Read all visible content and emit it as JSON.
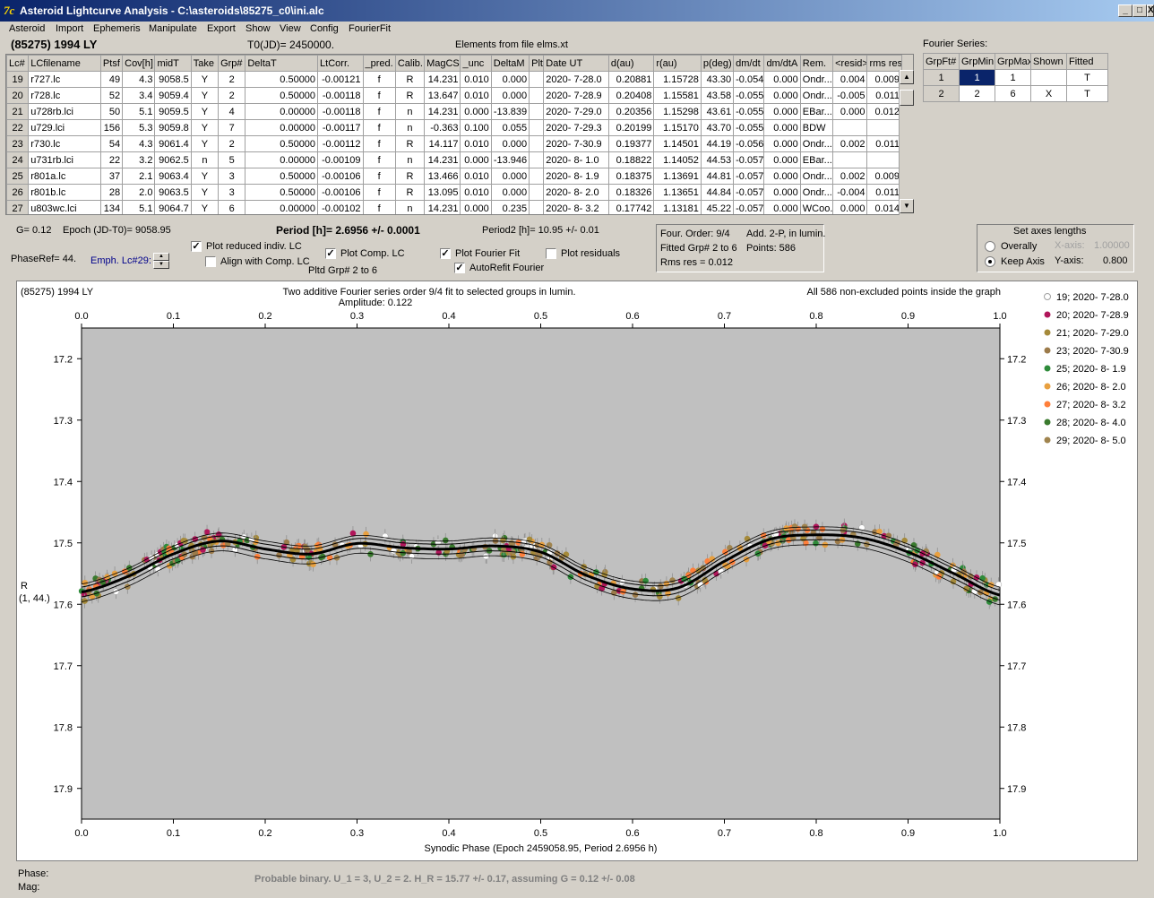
{
  "window": {
    "title": "Asteroid Lightcurve Analysis - C:\\asteroids\\85275_c0\\ini.alc",
    "icon": "app-logo-icon",
    "min": "_",
    "max": "□",
    "close": "X"
  },
  "menu": [
    "Asteroid",
    "Import",
    "Ephemeris",
    "Manipulate",
    "Export",
    "Show",
    "View",
    "Config",
    "FourierFit"
  ],
  "header": {
    "asteroid": "(85275) 1994 LY",
    "t0": "T0(JD)= 2450000.",
    "elements": "Elements from file elms.xt"
  },
  "table": {
    "columns": [
      "Lc#",
      "LCfilename",
      "Ptsf",
      "Cov[h]",
      "midT",
      "Take",
      "Grp#",
      "DeltaT",
      "LtCorr.",
      "_pred.",
      "Calib.",
      "MagCS",
      "_unc",
      "DeltaM",
      "Plt",
      "Date UT",
      "d(au)",
      "r(au)",
      "p(deg)",
      "dm/dt",
      "dm/dtA",
      "Rem.",
      "<resid>",
      "rms res"
    ],
    "rows": [
      [
        "19",
        "r727.lc",
        "49",
        "4.3",
        "9058.5",
        "Y",
        "2",
        "0.50000",
        "-0.00121",
        "f",
        "R",
        "14.231",
        "0.010",
        "0.000",
        "",
        "2020- 7-28.0",
        "0.20881",
        "1.15728",
        "43.30",
        "-0.054",
        "0.000",
        "Ondr...",
        "0.004",
        "0.009"
      ],
      [
        "20",
        "r728.lc",
        "52",
        "3.4",
        "9059.4",
        "Y",
        "2",
        "0.50000",
        "-0.00118",
        "f",
        "R",
        "13.647",
        "0.010",
        "0.000",
        "",
        "2020- 7-28.9",
        "0.20408",
        "1.15581",
        "43.58",
        "-0.055",
        "0.000",
        "Ondr...",
        "-0.005",
        "0.011"
      ],
      [
        "21",
        "u728rb.lci",
        "50",
        "5.1",
        "9059.5",
        "Y",
        "4",
        "0.00000",
        "-0.00118",
        "f",
        "n",
        "14.231",
        "0.000",
        "-13.839",
        "",
        "2020- 7-29.0",
        "0.20356",
        "1.15298",
        "43.61",
        "-0.055",
        "0.000",
        "EBar...",
        "0.000",
        "0.012"
      ],
      [
        "22",
        "u729.lci",
        "156",
        "5.3",
        "9059.8",
        "Y",
        "7",
        "0.00000",
        "-0.00117",
        "f",
        "n",
        "-0.363",
        "0.100",
        "0.055",
        "",
        "2020- 7-29.3",
        "0.20199",
        "1.15170",
        "43.70",
        "-0.055",
        "0.000",
        "BDW",
        "",
        ""
      ],
      [
        "23",
        "r730.lc",
        "54",
        "4.3",
        "9061.4",
        "Y",
        "2",
        "0.50000",
        "-0.00112",
        "f",
        "R",
        "14.117",
        "0.010",
        "0.000",
        "",
        "2020- 7-30.9",
        "0.19377",
        "1.14501",
        "44.19",
        "-0.056",
        "0.000",
        "Ondr...",
        "0.002",
        "0.011"
      ],
      [
        "24",
        "u731rb.lci",
        "22",
        "3.2",
        "9062.5",
        "n",
        "5",
        "0.00000",
        "-0.00109",
        "f",
        "n",
        "14.231",
        "0.000",
        "-13.946",
        "",
        "2020- 8- 1.0",
        "0.18822",
        "1.14052",
        "44.53",
        "-0.057",
        "0.000",
        "EBar...",
        "",
        ""
      ],
      [
        "25",
        "r801a.lc",
        "37",
        "2.1",
        "9063.4",
        "Y",
        "3",
        "0.50000",
        "-0.00106",
        "f",
        "R",
        "13.466",
        "0.010",
        "0.000",
        "",
        "2020- 8- 1.9",
        "0.18375",
        "1.13691",
        "44.81",
        "-0.057",
        "0.000",
        "Ondr...",
        "0.002",
        "0.009"
      ],
      [
        "26",
        "r801b.lc",
        "28",
        "2.0",
        "9063.5",
        "Y",
        "3",
        "0.50000",
        "-0.00106",
        "f",
        "R",
        "13.095",
        "0.010",
        "0.000",
        "",
        "2020- 8- 2.0",
        "0.18326",
        "1.13651",
        "44.84",
        "-0.057",
        "0.000",
        "Ondr...",
        "-0.004",
        "0.011"
      ],
      [
        "27",
        "u803wc.lci",
        "134",
        "5.1",
        "9064.7",
        "Y",
        "6",
        "0.00000",
        "-0.00102",
        "f",
        "n",
        "14.231",
        "0.000",
        "0.235",
        "",
        "2020- 8- 3.2",
        "0.17742",
        "1.13181",
        "45.22",
        "-0.057",
        "0.000",
        "WCoo...",
        "0.000",
        "0.014"
      ]
    ]
  },
  "fourier": {
    "label": "Fourier Series:",
    "columns": [
      "GrpFt#",
      "GrpMin",
      "GrpMax",
      "Shown",
      "Fitted"
    ],
    "rows": [
      [
        "1",
        "1",
        "1",
        "",
        "T"
      ],
      [
        "2",
        "2",
        "6",
        "X",
        "T"
      ]
    ]
  },
  "params": {
    "g": "G= 0.12",
    "epoch": "Epoch (JD-T0)= 9058.95",
    "period": "Period [h]= 2.6956 +/- 0.0001",
    "period2": "Period2 [h]= 10.95 +/- 0.01",
    "phaseref": "PhaseRef= 44.",
    "emph": "Emph. Lc#29:"
  },
  "checks": {
    "reduced": "Plot reduced indiv. LC",
    "align": "Align with Comp. LC",
    "comp": "Plot Comp. LC",
    "pltd": "Pltd Grp#  2  to   6",
    "fourierfit": "Plot Fourier Fit",
    "autorefit": "AutoRefit Fourier",
    "residuals": "Plot residuals"
  },
  "info": {
    "order": "Four. Order:  9/4",
    "add": "Add. 2-P, in lumin.",
    "fitted": "Fitted Grp# 2 to 6",
    "points": "Points: 586",
    "rms": "Rms res     = 0.012"
  },
  "axes": {
    "title": "Set axes lengths",
    "overally": "Overally",
    "keep": "Keep Axis",
    "xaxis_label": "X-axis:",
    "xaxis_val": "1.00000",
    "yaxis_label": "Y-axis:",
    "yaxis_val": "0.800"
  },
  "footer": {
    "phase": "Phase:",
    "mag": "Mag:",
    "binary": "Probable binary.  U_1 = 3, U_2 = 2.  H_R = 15.77 +/- 0.17, assuming G = 0.12 +/- 0.08"
  },
  "chart_data": {
    "type": "scatter",
    "title": "Two additive Fourier series order 9/4 fit to selected groups in lumin.",
    "subtitle": "Amplitude: 0.122",
    "left_title": "(85275) 1994 LY",
    "right_title": "All 586 non-excluded points inside the graph",
    "xlabel": "Synodic Phase (Epoch 2459058.95, Period 2.6956 h)",
    "ylabel": "R",
    "ylabel2": "(1, 44.)",
    "xlim": [
      0,
      1
    ],
    "ylim": [
      17.15,
      17.95
    ],
    "y_inverted": true,
    "xticks": [
      "0.0",
      "0.1",
      "0.2",
      "0.3",
      "0.4",
      "0.5",
      "0.6",
      "0.7",
      "0.8",
      "0.9",
      "1.0"
    ],
    "yticks": [
      "17.2",
      "17.3",
      "17.4",
      "17.5",
      "17.6",
      "17.7",
      "17.8",
      "17.9"
    ],
    "grid": false,
    "legend_position": "right",
    "legend": [
      {
        "name": "19; 2020- 7-28.0",
        "color": "#ffffff"
      },
      {
        "name": "20; 2020- 7-28.9",
        "color": "#b0155a"
      },
      {
        "name": "21; 2020- 7-29.0",
        "color": "#a58a3a"
      },
      {
        "name": "23; 2020- 7-30.9",
        "color": "#9c7b4a"
      },
      {
        "name": "25; 2020- 8- 1.9",
        "color": "#2e8b3a"
      },
      {
        "name": "26; 2020- 8- 2.0",
        "color": "#e8a040"
      },
      {
        "name": "27; 2020- 8- 3.2",
        "color": "#ff7f3a"
      },
      {
        "name": "28; 2020- 8- 4.0",
        "color": "#3a7a2e"
      },
      {
        "name": "29; 2020- 8- 5.0",
        "color": "#a0844e"
      }
    ],
    "fit_curve": {
      "x": [
        0,
        0.05,
        0.1,
        0.15,
        0.2,
        0.25,
        0.3,
        0.35,
        0.4,
        0.45,
        0.5,
        0.55,
        0.6,
        0.65,
        0.7,
        0.75,
        0.8,
        0.85,
        0.9,
        0.95,
        1.0
      ],
      "y": [
        17.58,
        17.555,
        17.518,
        17.497,
        17.51,
        17.518,
        17.501,
        17.508,
        17.51,
        17.505,
        17.515,
        17.553,
        17.575,
        17.573,
        17.53,
        17.494,
        17.487,
        17.492,
        17.515,
        17.55,
        17.585
      ]
    }
  }
}
